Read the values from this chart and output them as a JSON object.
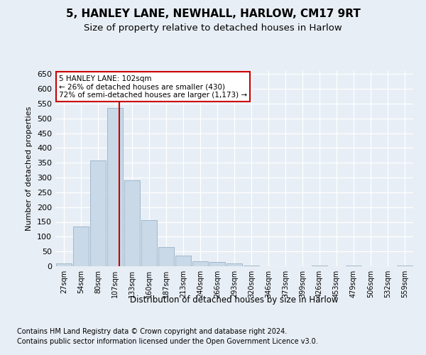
{
  "title1": "5, HANLEY LANE, NEWHALL, HARLOW, CM17 9RT",
  "title2": "Size of property relative to detached houses in Harlow",
  "xlabel": "Distribution of detached houses by size in Harlow",
  "ylabel": "Number of detached properties",
  "bin_labels": [
    "27sqm",
    "54sqm",
    "80sqm",
    "107sqm",
    "133sqm",
    "160sqm",
    "187sqm",
    "213sqm",
    "240sqm",
    "266sqm",
    "293sqm",
    "320sqm",
    "346sqm",
    "373sqm",
    "399sqm",
    "426sqm",
    "453sqm",
    "479sqm",
    "506sqm",
    "532sqm",
    "559sqm"
  ],
  "bar_values": [
    10,
    135,
    358,
    535,
    290,
    157,
    65,
    37,
    17,
    14,
    9,
    3,
    1,
    0,
    0,
    3,
    0,
    3,
    0,
    0,
    3
  ],
  "bar_color": "#c9d9e8",
  "bar_edgecolor": "#a0b8cc",
  "vline_bin_index": 3.27,
  "annotation_text": "5 HANLEY LANE: 102sqm\n← 26% of detached houses are smaller (430)\n72% of semi-detached houses are larger (1,173) →",
  "annotation_box_color": "#ffffff",
  "annotation_box_edgecolor": "#cc0000",
  "vline_color": "#cc0000",
  "ylim": [
    0,
    660
  ],
  "yticks": [
    0,
    50,
    100,
    150,
    200,
    250,
    300,
    350,
    400,
    450,
    500,
    550,
    600,
    650
  ],
  "footer1": "Contains HM Land Registry data © Crown copyright and database right 2024.",
  "footer2": "Contains public sector information licensed under the Open Government Licence v3.0.",
  "bg_color": "#e8eef5",
  "plot_bg_color": "#e8eef5",
  "title1_fontsize": 11,
  "title2_fontsize": 9.5
}
